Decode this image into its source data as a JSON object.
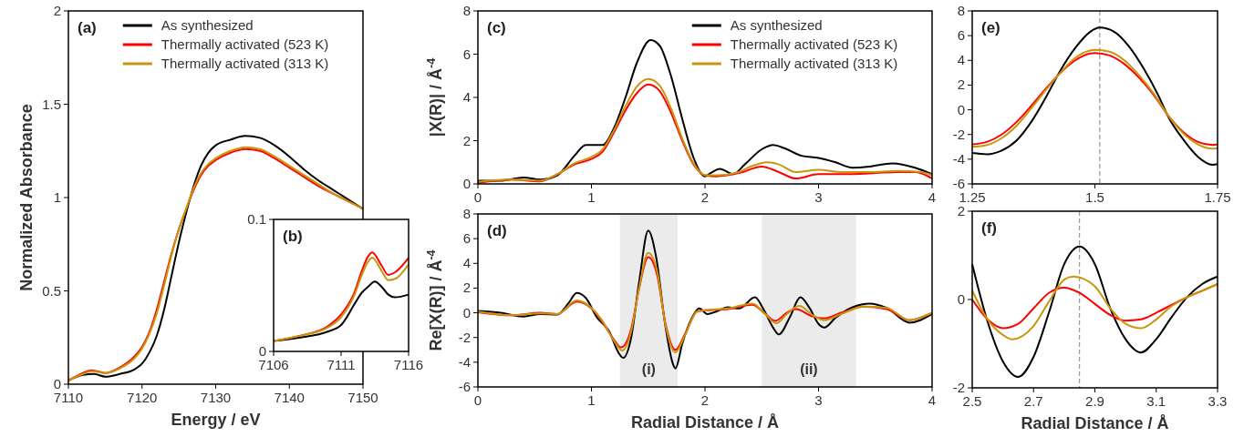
{
  "chart_data": [
    {
      "type": "line",
      "xlabel": "Energy / eV",
      "ylabel": "Normalized Absorbance",
      "annotations": [
        "(a)"
      ],
      "legend": "top right",
      "xlim": [
        7110,
        7150
      ],
      "ylim": [
        0,
        2
      ],
      "xticks": [
        7110,
        7120,
        7130,
        7140,
        7150
      ],
      "yticks": [
        0,
        {
          "value": 0.5,
          "label": "0.5"
        },
        1,
        {
          "value": 1.5,
          "label": "1.5"
        },
        2
      ],
      "series": [
        {
          "name": "As synthesized",
          "color": "#000000",
          "x": [
            7110,
            7112,
            7113.5,
            7115,
            7117,
            7119,
            7120,
            7121,
            7122,
            7123,
            7124,
            7125,
            7126,
            7127,
            7128,
            7129,
            7130,
            7132,
            7134,
            7136,
            7138,
            7140,
            7142,
            7144,
            7146,
            7148,
            7150
          ],
          "values": [
            0.02,
            0.05,
            0.055,
            0.04,
            0.055,
            0.08,
            0.11,
            0.17,
            0.26,
            0.4,
            0.58,
            0.76,
            0.92,
            1.06,
            1.17,
            1.24,
            1.28,
            1.31,
            1.33,
            1.32,
            1.28,
            1.22,
            1.15,
            1.09,
            1.04,
            0.99,
            0.94
          ]
        },
        {
          "name": "Thermally activated (523 K)",
          "color": "#ff0000",
          "x": [
            7110,
            7112,
            7113.2,
            7115,
            7117,
            7119,
            7120,
            7121,
            7122,
            7123,
            7124,
            7125,
            7126,
            7127,
            7128,
            7129,
            7130,
            7132,
            7134,
            7136,
            7138,
            7140,
            7142,
            7144,
            7146,
            7148,
            7150
          ],
          "values": [
            0.02,
            0.06,
            0.075,
            0.06,
            0.09,
            0.15,
            0.2,
            0.28,
            0.4,
            0.55,
            0.7,
            0.83,
            0.94,
            1.04,
            1.12,
            1.17,
            1.2,
            1.24,
            1.26,
            1.25,
            1.21,
            1.16,
            1.11,
            1.06,
            1.02,
            0.98,
            0.94
          ]
        },
        {
          "name": "Thermally activated (313 K)",
          "color": "#c8960a",
          "x": [
            7110,
            7112,
            7113.2,
            7115,
            7117,
            7119,
            7120,
            7121,
            7122,
            7123,
            7124,
            7125,
            7126,
            7127,
            7128,
            7129,
            7130,
            7132,
            7134,
            7136,
            7138,
            7140,
            7142,
            7144,
            7146,
            7148,
            7150
          ],
          "values": [
            0.02,
            0.055,
            0.07,
            0.06,
            0.085,
            0.14,
            0.19,
            0.27,
            0.38,
            0.53,
            0.69,
            0.83,
            0.94,
            1.05,
            1.13,
            1.18,
            1.21,
            1.25,
            1.27,
            1.26,
            1.22,
            1.17,
            1.12,
            1.07,
            1.02,
            0.98,
            0.94
          ]
        }
      ]
    },
    {
      "type": "line",
      "annotations": [
        "(b)"
      ],
      "xlim": [
        7106,
        7116
      ],
      "ylim": [
        0,
        0.1
      ],
      "xticks": [
        7106,
        7111,
        7116
      ],
      "yticks": [
        0,
        {
          "value": 0.1,
          "label": "0.1"
        }
      ],
      "series": [
        {
          "color": "#000000",
          "x": [
            7106,
            7108,
            7110,
            7111,
            7112,
            7112.5,
            7113,
            7113.5,
            7114,
            7114.5,
            7115,
            7116
          ],
          "values": [
            0.008,
            0.0105,
            0.015,
            0.02,
            0.036,
            0.044,
            0.049,
            0.053,
            0.049,
            0.043,
            0.041,
            0.043
          ]
        },
        {
          "color": "#ff0000",
          "x": [
            7106,
            7108,
            7110,
            7111,
            7112,
            7112.5,
            7113,
            7113.3,
            7114,
            7114.5,
            7115,
            7116
          ],
          "values": [
            0.008,
            0.012,
            0.019,
            0.028,
            0.045,
            0.06,
            0.072,
            0.075,
            0.065,
            0.058,
            0.06,
            0.071
          ]
        },
        {
          "color": "#c8960a",
          "x": [
            7106,
            7108,
            7110,
            7111,
            7112,
            7112.5,
            7113,
            7113.3,
            7114,
            7114.5,
            7115,
            7116
          ],
          "values": [
            0.008,
            0.012,
            0.018,
            0.026,
            0.043,
            0.057,
            0.068,
            0.071,
            0.061,
            0.054,
            0.055,
            0.066
          ]
        }
      ]
    },
    {
      "type": "line",
      "ylabel": "|X(R)| / Å$^{-4}$",
      "annotations": [
        "(c)"
      ],
      "legend": "top right",
      "xlim": [
        0,
        4
      ],
      "ylim": [
        0,
        8
      ],
      "xticks": [
        0,
        1,
        2,
        3,
        4
      ],
      "yticks": [
        0,
        2,
        4,
        6,
        8
      ],
      "series": [
        {
          "name": "As synthesized",
          "color": "#000000",
          "x": [
            0,
            0.2,
            0.4,
            0.55,
            0.7,
            0.85,
            0.95,
            1.1,
            1.2,
            1.3,
            1.4,
            1.52,
            1.6,
            1.7,
            1.8,
            1.9,
            2.0,
            2.05,
            2.13,
            2.25,
            2.35,
            2.5,
            2.6,
            2.7,
            2.85,
            3.0,
            3.15,
            3.3,
            3.45,
            3.65,
            3.85,
            4.0
          ],
          "values": [
            0.15,
            0.15,
            0.3,
            0.2,
            0.4,
            1.3,
            1.8,
            1.8,
            2.6,
            4.0,
            5.6,
            6.65,
            6.4,
            5.0,
            3.0,
            1.2,
            0.35,
            0.5,
            0.7,
            0.45,
            0.9,
            1.6,
            1.8,
            1.65,
            1.3,
            1.2,
            1.0,
            0.75,
            0.8,
            0.95,
            0.75,
            0.45
          ]
        },
        {
          "name": "Thermally activated (523 K)",
          "color": "#ff0000",
          "x": [
            0,
            0.3,
            0.55,
            0.7,
            0.85,
            1.0,
            1.1,
            1.2,
            1.3,
            1.4,
            1.5,
            1.6,
            1.7,
            1.8,
            1.9,
            2.0,
            2.1,
            2.3,
            2.5,
            2.65,
            2.8,
            3.0,
            3.2,
            3.5,
            3.7,
            3.85,
            4.0
          ],
          "values": [
            0.05,
            0.2,
            0.12,
            0.45,
            0.9,
            1.15,
            1.5,
            2.4,
            3.4,
            4.2,
            4.6,
            4.3,
            3.3,
            2.0,
            0.9,
            0.4,
            0.35,
            0.5,
            0.8,
            0.55,
            0.25,
            0.45,
            0.45,
            0.5,
            0.55,
            0.55,
            0.25
          ]
        },
        {
          "name": "Thermally activated (313 K)",
          "color": "#c8960a",
          "x": [
            0,
            0.3,
            0.55,
            0.7,
            0.85,
            1.0,
            1.1,
            1.2,
            1.3,
            1.4,
            1.5,
            1.6,
            1.7,
            1.8,
            1.9,
            2.0,
            2.1,
            2.3,
            2.4,
            2.55,
            2.65,
            2.8,
            3.0,
            3.2,
            3.5,
            3.7,
            3.9,
            4.0
          ],
          "values": [
            0.1,
            0.2,
            0.15,
            0.45,
            0.95,
            1.25,
            1.6,
            2.5,
            3.6,
            4.5,
            4.85,
            4.55,
            3.5,
            2.1,
            0.95,
            0.4,
            0.4,
            0.55,
            0.8,
            1.0,
            0.9,
            0.55,
            0.65,
            0.55,
            0.55,
            0.6,
            0.55,
            0.4
          ]
        }
      ]
    },
    {
      "type": "line",
      "xlabel": "Radial Distance / Å",
      "ylabel": "Re[X(R)] / Å$^{-4}$",
      "annotations": [
        "(d)"
      ],
      "xlim": [
        0,
        4
      ],
      "ylim": [
        -6,
        8
      ],
      "xticks": [
        0,
        1,
        2,
        3,
        4
      ],
      "yticks": [
        -6,
        -4,
        -2,
        0,
        2,
        4,
        6,
        8
      ],
      "bands": [
        {
          "axis": "x",
          "from": 1.25,
          "to": 1.76,
          "label": "(i)",
          "color": "#ebebeb"
        },
        {
          "axis": "x",
          "from": 2.5,
          "to": 3.33,
          "label": "(ii)",
          "color": "#ebebeb"
        }
      ],
      "series": [
        {
          "color": "#000000",
          "x": [
            0,
            0.2,
            0.4,
            0.55,
            0.7,
            0.8,
            0.87,
            0.95,
            1.05,
            1.15,
            1.25,
            1.28,
            1.35,
            1.42,
            1.5,
            1.57,
            1.65,
            1.72,
            1.74,
            1.8,
            1.88,
            1.95,
            2.02,
            2.1,
            2.2,
            2.3,
            2.44,
            2.52,
            2.6,
            2.65,
            2.75,
            2.84,
            2.92,
            3.0,
            3.05,
            3.15,
            3.3,
            3.45,
            3.6,
            3.8,
            4.0
          ],
          "values": [
            0.15,
            0.0,
            -0.3,
            -0.1,
            -0.15,
            0.8,
            1.6,
            1.2,
            -0.4,
            -1.4,
            -3.4,
            -3.65,
            -2.0,
            2.5,
            6.65,
            4.5,
            -1.0,
            -4.2,
            -4.5,
            -2.5,
            -0.5,
            0.35,
            -0.1,
            0.1,
            0.45,
            0.35,
            1.25,
            0.2,
            -1.2,
            -1.75,
            -0.3,
            1.25,
            0.4,
            -0.9,
            -1.2,
            -0.4,
            0.45,
            0.75,
            0.4,
            -0.8,
            -0.1
          ]
        },
        {
          "color": "#ff0000",
          "x": [
            0,
            0.3,
            0.55,
            0.7,
            0.87,
            1.0,
            1.1,
            1.2,
            1.26,
            1.35,
            1.42,
            1.5,
            1.58,
            1.65,
            1.74,
            1.82,
            1.93,
            2.0,
            2.2,
            2.42,
            2.52,
            2.62,
            2.72,
            2.8,
            2.95,
            3.05,
            3.2,
            3.4,
            3.6,
            3.8,
            4.0
          ],
          "values": [
            0.05,
            -0.2,
            0.0,
            -0.1,
            0.9,
            0.35,
            -0.8,
            -2.2,
            -2.8,
            -1.3,
            2.0,
            4.5,
            3.0,
            -0.8,
            -3.0,
            -1.8,
            0.1,
            0.2,
            0.3,
            0.65,
            0.0,
            -0.65,
            0.0,
            0.3,
            -0.3,
            -0.45,
            0.0,
            0.5,
            0.3,
            -0.6,
            0.0
          ]
        },
        {
          "color": "#c8960a",
          "x": [
            0,
            0.3,
            0.55,
            0.7,
            0.87,
            1.0,
            1.1,
            1.2,
            1.27,
            1.35,
            1.42,
            1.5,
            1.58,
            1.65,
            1.74,
            1.82,
            1.93,
            2.0,
            2.2,
            2.42,
            2.52,
            2.63,
            2.72,
            2.83,
            2.95,
            3.05,
            3.2,
            3.4,
            3.6,
            3.8,
            4.0
          ],
          "values": [
            0.1,
            -0.2,
            -0.05,
            -0.1,
            1.0,
            0.4,
            -0.7,
            -2.3,
            -3.05,
            -1.5,
            2.0,
            4.85,
            3.3,
            -0.9,
            -3.2,
            -1.9,
            0.1,
            0.2,
            0.35,
            0.75,
            0.0,
            -0.85,
            -0.1,
            0.55,
            -0.2,
            -0.6,
            -0.1,
            0.5,
            0.4,
            -0.6,
            0.0
          ]
        }
      ]
    },
    {
      "type": "line",
      "annotations": [
        "(e)"
      ],
      "xlim": [
        1.25,
        1.75
      ],
      "ylim": [
        -6,
        8
      ],
      "xticks": [
        {
          "value": 1.25,
          "label": "1.25"
        },
        {
          "value": 1.5,
          "label": "1.5"
        },
        {
          "value": 1.75,
          "label": "1.75"
        }
      ],
      "yticks": [
        -6,
        -4,
        -2,
        0,
        2,
        4,
        6,
        8
      ],
      "ref_lines": [
        {
          "axis": "x",
          "value": 1.51,
          "color": "#808080",
          "line_style": "dashed"
        }
      ],
      "series": [
        {
          "color": "#000000",
          "x": [
            1.25,
            1.28,
            1.31,
            1.34,
            1.37,
            1.4,
            1.43,
            1.46,
            1.49,
            1.51,
            1.54,
            1.57,
            1.6,
            1.63,
            1.65,
            1.68,
            1.71,
            1.74,
            1.75
          ],
          "values": [
            -3.5,
            -3.6,
            -3.3,
            -2.5,
            -1.0,
            1.0,
            3.2,
            5.0,
            6.3,
            6.65,
            6.3,
            5.1,
            3.3,
            1.1,
            -0.6,
            -2.4,
            -3.8,
            -4.45,
            -4.4
          ]
        },
        {
          "color": "#ff0000",
          "x": [
            1.25,
            1.28,
            1.31,
            1.34,
            1.37,
            1.4,
            1.43,
            1.46,
            1.49,
            1.5,
            1.53,
            1.56,
            1.59,
            1.62,
            1.65,
            1.68,
            1.71,
            1.74,
            1.75
          ],
          "values": [
            -2.8,
            -2.6,
            -2.0,
            -1.0,
            0.3,
            1.7,
            3.0,
            4.0,
            4.55,
            4.6,
            4.4,
            3.7,
            2.6,
            1.2,
            -0.5,
            -1.8,
            -2.6,
            -2.85,
            -2.8
          ]
        },
        {
          "color": "#c8960a",
          "x": [
            1.25,
            1.28,
            1.31,
            1.34,
            1.37,
            1.4,
            1.43,
            1.46,
            1.49,
            1.5,
            1.53,
            1.56,
            1.59,
            1.62,
            1.65,
            1.68,
            1.71,
            1.74,
            1.75
          ],
          "values": [
            -3.0,
            -2.85,
            -2.3,
            -1.3,
            0.1,
            1.6,
            3.0,
            4.2,
            4.8,
            4.85,
            4.7,
            4.0,
            2.8,
            1.3,
            -0.5,
            -1.9,
            -2.8,
            -3.15,
            -3.1
          ]
        }
      ]
    },
    {
      "type": "line",
      "xlabel": "Radial Distance / Å",
      "annotations": [
        "(f)"
      ],
      "xlim": [
        2.5,
        3.3
      ],
      "ylim": [
        -2,
        2
      ],
      "xticks": [
        {
          "value": 2.5,
          "label": "2.5"
        },
        {
          "value": 2.7,
          "label": "2.7"
        },
        {
          "value": 2.9,
          "label": "2.9"
        },
        {
          "value": 3.1,
          "label": "3.1"
        },
        {
          "value": 3.3,
          "label": "3.3"
        }
      ],
      "yticks": [
        -2,
        0,
        2
      ],
      "ref_lines": [
        {
          "axis": "x",
          "value": 2.85,
          "color": "#808080",
          "line_style": "dashed"
        }
      ],
      "series": [
        {
          "color": "#000000",
          "x": [
            2.5,
            2.55,
            2.6,
            2.65,
            2.7,
            2.75,
            2.8,
            2.85,
            2.9,
            2.95,
            3.0,
            3.05,
            3.1,
            3.15,
            3.2,
            3.25,
            3.3
          ],
          "values": [
            0.8,
            -0.5,
            -1.4,
            -1.75,
            -1.3,
            -0.3,
            0.8,
            1.2,
            0.8,
            -0.2,
            -0.9,
            -1.2,
            -0.9,
            -0.4,
            0.05,
            0.35,
            0.52
          ]
        },
        {
          "color": "#ff0000",
          "x": [
            2.5,
            2.55,
            2.6,
            2.65,
            2.7,
            2.75,
            2.8,
            2.85,
            2.9,
            2.95,
            3.0,
            3.05,
            3.1,
            3.15,
            3.2,
            3.25,
            3.3
          ],
          "values": [
            0.0,
            -0.45,
            -0.65,
            -0.55,
            -0.2,
            0.15,
            0.27,
            0.15,
            -0.1,
            -0.35,
            -0.48,
            -0.45,
            -0.3,
            -0.12,
            0.05,
            0.2,
            0.35
          ]
        },
        {
          "color": "#c8960a",
          "x": [
            2.5,
            2.55,
            2.6,
            2.63,
            2.7,
            2.75,
            2.8,
            2.83,
            2.9,
            2.95,
            3.0,
            3.05,
            3.1,
            3.15,
            3.2,
            3.25,
            3.3
          ],
          "values": [
            0.2,
            -0.45,
            -0.8,
            -0.9,
            -0.6,
            -0.05,
            0.45,
            0.52,
            0.3,
            -0.2,
            -0.55,
            -0.65,
            -0.45,
            -0.15,
            0.05,
            0.2,
            0.35
          ]
        }
      ]
    }
  ]
}
